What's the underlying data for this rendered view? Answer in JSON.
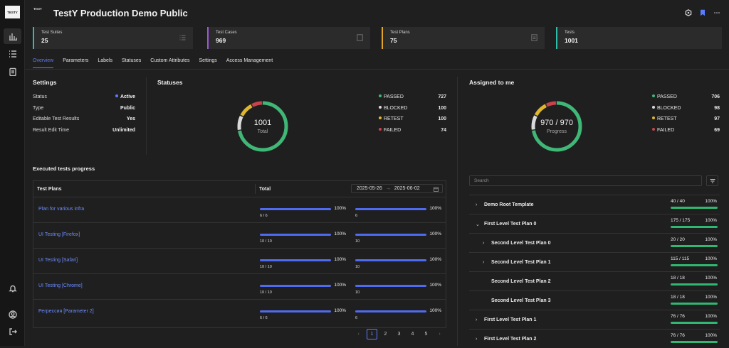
{
  "app": {
    "logo_text": "TESTY",
    "badge_text": "TestY",
    "title": "TestY Production Demo Public"
  },
  "colors": {
    "accent": "#5b7cff",
    "passed": "#3fb776",
    "blocked": "#d9d9d9",
    "retest": "#e0b72c",
    "failed": "#c9434b"
  },
  "sidebar": {
    "top_icons": [
      "bar-chart-icon",
      "list-icon",
      "clipboard-icon"
    ],
    "bottom_icons": [
      "bell-icon",
      "user-icon",
      "logout-icon"
    ]
  },
  "top_actions": [
    "hexagon-icon",
    "bookmark-icon",
    "more-icon"
  ],
  "cards": [
    {
      "label": "Test Suites",
      "value": "25",
      "color": "#2fbcaa",
      "icon": "list-icon"
    },
    {
      "label": "Test Cases",
      "value": "969",
      "color": "#9b59d6",
      "icon": "doc-icon"
    },
    {
      "label": "Test Plans",
      "value": "75",
      "color": "#e3a42a",
      "icon": "clipboard-icon"
    },
    {
      "label": "Tests",
      "value": "1001",
      "color": "#2fbcaa",
      "icon": ""
    }
  ],
  "tabs": [
    "Overview",
    "Parameters",
    "Labels",
    "Statuses",
    "Custom Attributes",
    "Settings",
    "Access Management"
  ],
  "settings": {
    "title": "Settings",
    "rows": [
      {
        "key": "Status",
        "value": "Active"
      },
      {
        "key": "Type",
        "value": "Public"
      },
      {
        "key": "Editable Test Results",
        "value": "Yes"
      },
      {
        "key": "Result Edit Time",
        "value": "Unlimited"
      }
    ]
  },
  "statuses": {
    "title": "Statuses",
    "center_value": "1001",
    "center_label": "Total",
    "legend": [
      {
        "label": "PASSED",
        "value": "727"
      },
      {
        "label": "BLOCKED",
        "value": "100"
      },
      {
        "label": "RETEST",
        "value": "100"
      },
      {
        "label": "FAILED",
        "value": "74"
      }
    ]
  },
  "assigned": {
    "title": "Assigned to me",
    "center_value": "970 / 970",
    "center_label": "Progress",
    "legend": [
      {
        "label": "PASSED",
        "value": "706"
      },
      {
        "label": "BLOCKED",
        "value": "98"
      },
      {
        "label": "RETEST",
        "value": "97"
      },
      {
        "label": "FAILED",
        "value": "69"
      }
    ],
    "search_placeholder": "Search",
    "tree": [
      {
        "name": "Demo Root Template",
        "count": "40 / 40",
        "pct": "100%",
        "level": 0,
        "chevron": "›"
      },
      {
        "name": "First Level Test Plan 0",
        "count": "175 / 175",
        "pct": "100%",
        "level": 0,
        "chevron": "⌄"
      },
      {
        "name": "Second Level Test Plan 0",
        "count": "20 / 20",
        "pct": "100%",
        "level": 1,
        "chevron": "›"
      },
      {
        "name": "Second Level Test Plan 1",
        "count": "115 / 115",
        "pct": "100%",
        "level": 1,
        "chevron": "›"
      },
      {
        "name": "Second Level Test Plan 2",
        "count": "18 / 18",
        "pct": "100%",
        "level": 1,
        "chevron": ""
      },
      {
        "name": "Second Level Test Plan 3",
        "count": "18 / 18",
        "pct": "100%",
        "level": 1,
        "chevron": ""
      },
      {
        "name": "First Level Test Plan 1",
        "count": "76 / 76",
        "pct": "100%",
        "level": 0,
        "chevron": "›"
      },
      {
        "name": "First Level Test Plan 2",
        "count": "76 / 76",
        "pct": "100%",
        "level": 0,
        "chevron": "›"
      }
    ]
  },
  "progress": {
    "title": "Executed tests progress",
    "col_plans": "Test Plans",
    "col_total": "Total",
    "date_from": "2025-05-26",
    "date_arrow": "→",
    "date_to": "2025-06-02",
    "rows": [
      {
        "plan": "Plan for various infra",
        "total_pct": "100%",
        "total_cnt": "6 / 6",
        "range_pct": "100%",
        "range_cnt": "6",
        "fill": 1.0
      },
      {
        "plan": "UI Testing [Firefox]",
        "total_pct": "100%",
        "total_cnt": "10 / 10",
        "range_pct": "100%",
        "range_cnt": "10",
        "fill": 1.0
      },
      {
        "plan": "UI Testing [Safari]",
        "total_pct": "100%",
        "total_cnt": "10 / 10",
        "range_pct": "100%",
        "range_cnt": "10",
        "fill": 1.0
      },
      {
        "plan": "UI Testing [Chrome]",
        "total_pct": "100%",
        "total_cnt": "10 / 10",
        "range_pct": "100%",
        "range_cnt": "10",
        "fill": 1.0
      },
      {
        "plan": "Регрессия [Parameter 2]",
        "total_pct": "100%",
        "total_cnt": "6 / 6",
        "range_pct": "100%",
        "range_cnt": "6",
        "fill": 1.0
      }
    ],
    "pages": [
      "1",
      "2",
      "3",
      "4",
      "5"
    ],
    "prev": "‹",
    "next": "›"
  }
}
